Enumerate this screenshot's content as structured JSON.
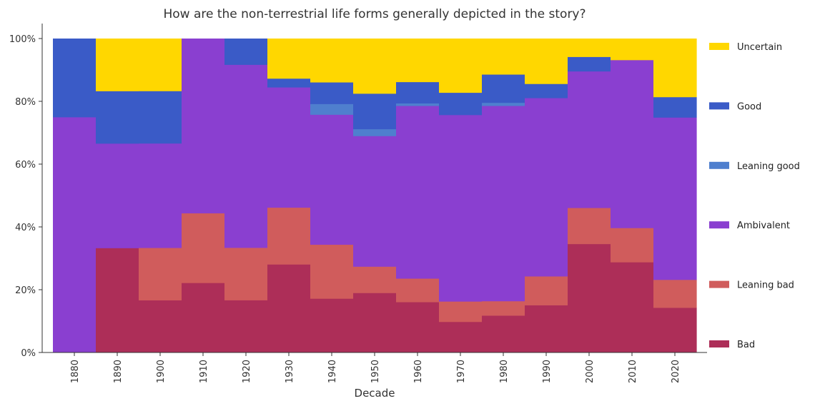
{
  "chart_data": {
    "type": "bar",
    "stacked": true,
    "normalized": true,
    "title": "How are the non-terrestrial life forms generally depicted in the story?",
    "xlabel": "Decade",
    "ylabel": "",
    "ylim": [
      0,
      1.05
    ],
    "y_ticks": [
      0,
      0.2,
      0.4,
      0.6,
      0.8,
      1.0
    ],
    "y_tick_labels": [
      "0%",
      "20%",
      "40%",
      "60%",
      "80%",
      "100%"
    ],
    "categories": [
      "1880",
      "1890",
      "1900",
      "1910",
      "1920",
      "1930",
      "1940",
      "1950",
      "1960",
      "1970",
      "1980",
      "1990",
      "2000",
      "2010",
      "2020"
    ],
    "legend_position": "right",
    "grid": false,
    "series": [
      {
        "name": "Bad",
        "color": "#ad2e58",
        "values": [
          0.0,
          0.333,
          0.167,
          0.222,
          0.167,
          0.281,
          0.172,
          0.19,
          0.161,
          0.098,
          0.118,
          0.151,
          0.346,
          0.288,
          0.143
        ]
      },
      {
        "name": "Leaning bad",
        "color": "#d05c5c",
        "values": [
          0.0,
          0.0,
          0.167,
          0.222,
          0.167,
          0.181,
          0.172,
          0.084,
          0.075,
          0.065,
          0.046,
          0.092,
          0.115,
          0.109,
          0.089
        ]
      },
      {
        "name": "Ambivalent",
        "color": "#8a3fd0",
        "values": [
          0.75,
          0.333,
          0.333,
          0.556,
          0.583,
          0.383,
          0.414,
          0.416,
          0.55,
          0.594,
          0.622,
          0.568,
          0.435,
          0.535,
          0.517
        ]
      },
      {
        "name": "Leaning good",
        "color": "#4f7fce",
        "values": [
          0.0,
          0.0,
          0.0,
          0.0,
          0.0,
          0.0,
          0.034,
          0.022,
          0.008,
          0.0,
          0.01,
          0.0,
          0.0,
          0.0,
          0.0
        ]
      },
      {
        "name": "Good",
        "color": "#3a5bc7",
        "values": [
          0.25,
          0.167,
          0.167,
          0.0,
          0.083,
          0.028,
          0.069,
          0.113,
          0.068,
          0.071,
          0.09,
          0.045,
          0.046,
          0.0,
          0.065
        ]
      },
      {
        "name": "Uncertain",
        "color": "#ffd700",
        "values": [
          0.0,
          0.167,
          0.167,
          0.0,
          0.0,
          0.127,
          0.139,
          0.175,
          0.138,
          0.172,
          0.114,
          0.144,
          0.058,
          0.068,
          0.186
        ]
      }
    ],
    "legend_order": [
      "Uncertain",
      "Good",
      "Leaning good",
      "Ambivalent",
      "Leaning bad",
      "Bad"
    ]
  }
}
